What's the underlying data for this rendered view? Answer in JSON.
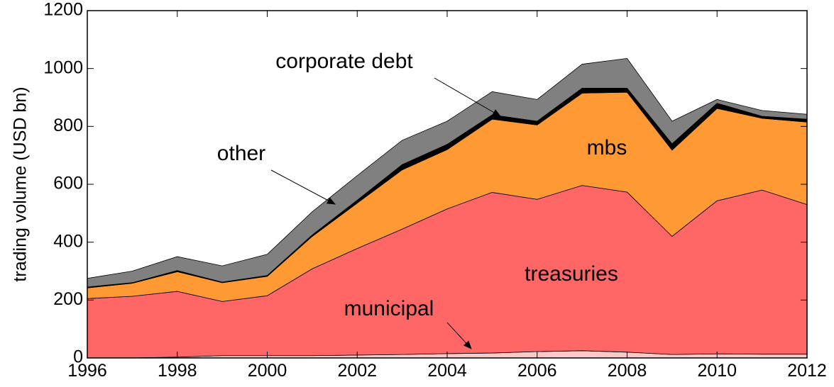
{
  "chart_data": {
    "type": "stacked_area",
    "y_label": "trading volume (USD bn)",
    "x": [
      1996,
      1997,
      1998,
      1999,
      2000,
      2001,
      2002,
      2003,
      2004,
      2005,
      2006,
      2007,
      2008,
      2009,
      2010,
      2011,
      2012
    ],
    "series": [
      {
        "name": "municipal",
        "color": "#ffc8c8",
        "values": [
          0,
          0,
          3,
          8,
          8,
          8,
          10,
          12,
          15,
          17,
          22,
          25,
          20,
          12,
          14,
          13,
          13
        ]
      },
      {
        "name": "treasuries",
        "color": "#ff6666",
        "values": [
          205,
          213,
          227,
          187,
          207,
          300,
          368,
          433,
          500,
          555,
          526,
          571,
          553,
          408,
          529,
          567,
          517
        ]
      },
      {
        "name": "mbs",
        "color": "#ff9933",
        "values": [
          37,
          45,
          68,
          65,
          67,
          112,
          157,
          205,
          205,
          253,
          257,
          319,
          345,
          298,
          319,
          248,
          285
        ]
      },
      {
        "name": "corporate debt",
        "color": "#000000",
        "values": [
          3,
          2,
          4,
          2,
          3,
          5,
          10,
          18,
          18,
          15,
          13,
          17,
          14,
          22,
          18,
          7,
          10
        ]
      },
      {
        "name": "other",
        "color": "#808080",
        "values": [
          30,
          40,
          48,
          56,
          73,
          80,
          85,
          84,
          80,
          80,
          75,
          83,
          103,
          78,
          13,
          20,
          17
        ]
      }
    ],
    "xlim": [
      1996,
      2012
    ],
    "xticks": [
      1996,
      1998,
      2000,
      2002,
      2004,
      2006,
      2008,
      2010,
      2012
    ],
    "ylim": [
      0,
      1200
    ],
    "yticks": [
      0,
      200,
      400,
      600,
      800,
      1000,
      1200
    ]
  }
}
